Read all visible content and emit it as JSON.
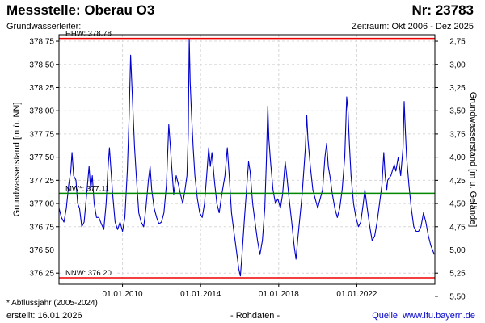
{
  "header": {
    "title": "Messstelle: Oberau O3",
    "nr": "Nr: 23783",
    "aquifer": "Grundwasserleiter:",
    "period": "Zeitraum: Okt 2006 - Dez 2025"
  },
  "footer": {
    "note": "* Abflussjahr (2005-2024)",
    "created": "erstellt:  16.01.2026",
    "raw": "- Rohdaten -",
    "source": "Quelle:  www.lfu.bayern.de"
  },
  "chart_data": {
    "type": "line",
    "ylabel_left": "Grundwasserstand [m ü. NN]",
    "ylabel_right": "Grundwasserstand [m u. Gelände]",
    "ylim": [
      376.13,
      378.82
    ],
    "yticks_left": [
      {
        "value": 378.75,
        "label": "378,75"
      },
      {
        "value": 378.5,
        "label": "378,50"
      },
      {
        "value": 378.25,
        "label": "378,25"
      },
      {
        "value": 378.0,
        "label": "378,00"
      },
      {
        "value": 377.75,
        "label": "377,75"
      },
      {
        "value": 377.5,
        "label": "377,50"
      },
      {
        "value": 377.25,
        "label": "377,25"
      },
      {
        "value": 377.0,
        "label": "377,00"
      },
      {
        "value": 376.75,
        "label": "376,75"
      },
      {
        "value": 376.5,
        "label": "376,50"
      },
      {
        "value": 376.25,
        "label": "376,25"
      }
    ],
    "yticks_right": [
      {
        "value": 2.75,
        "label": "2,75"
      },
      {
        "value": 3.0,
        "label": "3,00"
      },
      {
        "value": 3.25,
        "label": "3,25"
      },
      {
        "value": 3.5,
        "label": "3,50"
      },
      {
        "value": 3.75,
        "label": "3,75"
      },
      {
        "value": 4.0,
        "label": "4,00"
      },
      {
        "value": 4.25,
        "label": "4,25"
      },
      {
        "value": 4.5,
        "label": "4,50"
      },
      {
        "value": 4.75,
        "label": "4,75"
      },
      {
        "value": 5.0,
        "label": "5,00"
      },
      {
        "value": 5.25,
        "label": "5,25"
      },
      {
        "value": 5.5,
        "label": "5,50"
      }
    ],
    "right_axis_ground_level": 381.5,
    "xlim": [
      "2006-10-01",
      "2025-12-31"
    ],
    "xticks": [
      {
        "date": "2010-01-01",
        "label": "01.01.2010"
      },
      {
        "date": "2014-01-01",
        "label": "01.01.2014"
      },
      {
        "date": "2018-01-01",
        "label": "01.01.2018"
      },
      {
        "date": "2022-01-01",
        "label": "01.01.2022"
      }
    ],
    "grid": true,
    "reference_lines": [
      {
        "name": "HHW",
        "label": "HHW: 378.78",
        "value": 378.78,
        "color": "#ee0000"
      },
      {
        "name": "MW",
        "label": "MW*: 377.11",
        "value": 377.11,
        "color": "#008800"
      },
      {
        "name": "NNW",
        "label": "NNW: 376.20",
        "value": 376.2,
        "color": "#ee0000"
      }
    ],
    "series": [
      {
        "color": "#0000cc",
        "points": [
          [
            "2006-10-01",
            376.95
          ],
          [
            "2006-11-15",
            376.85
          ],
          [
            "2007-01-01",
            376.8
          ],
          [
            "2007-02-15",
            376.95
          ],
          [
            "2007-04-01",
            377.2
          ],
          [
            "2007-05-10",
            377.35
          ],
          [
            "2007-06-01",
            377.55
          ],
          [
            "2007-07-01",
            377.3
          ],
          [
            "2007-08-15",
            377.25
          ],
          [
            "2007-09-15",
            377.0
          ],
          [
            "2007-10-20",
            376.95
          ],
          [
            "2007-12-01",
            376.75
          ],
          [
            "2008-01-15",
            376.8
          ],
          [
            "2008-03-01",
            377.1
          ],
          [
            "2008-04-15",
            377.4
          ],
          [
            "2008-05-15",
            377.15
          ],
          [
            "2008-06-15",
            377.3
          ],
          [
            "2008-07-20",
            377.0
          ],
          [
            "2008-09-01",
            376.85
          ],
          [
            "2008-10-15",
            376.85
          ],
          [
            "2008-12-01",
            376.78
          ],
          [
            "2009-01-15",
            376.72
          ],
          [
            "2009-03-01",
            377.0
          ],
          [
            "2009-04-01",
            377.35
          ],
          [
            "2009-05-01",
            377.6
          ],
          [
            "2009-06-01",
            377.35
          ],
          [
            "2009-07-01",
            377.1
          ],
          [
            "2009-08-15",
            376.8
          ],
          [
            "2009-10-01",
            376.72
          ],
          [
            "2009-11-15",
            376.8
          ],
          [
            "2010-01-01",
            376.7
          ],
          [
            "2010-02-15",
            376.85
          ],
          [
            "2010-04-01",
            377.35
          ],
          [
            "2010-05-05",
            377.95
          ],
          [
            "2010-06-01",
            378.6
          ],
          [
            "2010-06-20",
            378.35
          ],
          [
            "2010-07-15",
            378.0
          ],
          [
            "2010-08-15",
            377.6
          ],
          [
            "2010-09-15",
            377.3
          ],
          [
            "2010-11-01",
            376.9
          ],
          [
            "2010-12-15",
            376.8
          ],
          [
            "2011-02-01",
            376.75
          ],
          [
            "2011-03-15",
            376.95
          ],
          [
            "2011-05-01",
            377.25
          ],
          [
            "2011-06-01",
            377.4
          ],
          [
            "2011-07-01",
            377.15
          ],
          [
            "2011-08-15",
            376.95
          ],
          [
            "2011-10-01",
            376.85
          ],
          [
            "2011-11-15",
            376.78
          ],
          [
            "2012-01-01",
            376.8
          ],
          [
            "2012-02-15",
            376.9
          ],
          [
            "2012-04-01",
            377.2
          ],
          [
            "2012-05-15",
            377.85
          ],
          [
            "2012-06-10",
            377.65
          ],
          [
            "2012-07-15",
            377.35
          ],
          [
            "2012-08-15",
            377.1
          ],
          [
            "2012-10-01",
            377.3
          ],
          [
            "2012-11-15",
            377.2
          ],
          [
            "2012-12-20",
            377.1
          ],
          [
            "2013-02-01",
            377.0
          ],
          [
            "2013-03-15",
            377.15
          ],
          [
            "2013-04-20",
            377.3
          ],
          [
            "2013-05-15",
            377.75
          ],
          [
            "2013-06-02",
            378.78
          ],
          [
            "2013-06-20",
            378.3
          ],
          [
            "2013-07-15",
            377.95
          ],
          [
            "2013-08-15",
            377.6
          ],
          [
            "2013-09-15",
            377.3
          ],
          [
            "2013-11-01",
            377.05
          ],
          [
            "2013-12-15",
            376.9
          ],
          [
            "2014-02-01",
            376.85
          ],
          [
            "2014-03-15",
            377.0
          ],
          [
            "2014-05-01",
            377.35
          ],
          [
            "2014-06-01",
            377.6
          ],
          [
            "2014-07-01",
            377.4
          ],
          [
            "2014-08-01",
            377.55
          ],
          [
            "2014-09-15",
            377.25
          ],
          [
            "2014-11-01",
            377.0
          ],
          [
            "2014-12-15",
            376.9
          ],
          [
            "2015-02-01",
            377.1
          ],
          [
            "2015-04-01",
            377.3
          ],
          [
            "2015-05-15",
            377.6
          ],
          [
            "2015-06-15",
            377.35
          ],
          [
            "2015-08-01",
            376.9
          ],
          [
            "2015-09-15",
            376.7
          ],
          [
            "2015-11-01",
            376.5
          ],
          [
            "2015-12-15",
            376.3
          ],
          [
            "2016-01-15",
            376.22
          ],
          [
            "2016-02-15",
            376.45
          ],
          [
            "2016-04-01",
            376.85
          ],
          [
            "2016-05-15",
            377.2
          ],
          [
            "2016-06-15",
            377.45
          ],
          [
            "2016-07-15",
            377.35
          ],
          [
            "2016-09-01",
            377.0
          ],
          [
            "2016-10-15",
            376.8
          ],
          [
            "2016-12-01",
            376.6
          ],
          [
            "2017-01-15",
            376.45
          ],
          [
            "2017-03-01",
            376.6
          ],
          [
            "2017-04-15",
            376.95
          ],
          [
            "2017-05-15",
            377.45
          ],
          [
            "2017-06-10",
            378.05
          ],
          [
            "2017-07-01",
            377.7
          ],
          [
            "2017-08-01",
            377.45
          ],
          [
            "2017-09-15",
            377.15
          ],
          [
            "2017-11-01",
            377.0
          ],
          [
            "2017-12-15",
            377.05
          ],
          [
            "2018-02-01",
            376.95
          ],
          [
            "2018-03-15",
            377.1
          ],
          [
            "2018-05-01",
            377.45
          ],
          [
            "2018-06-01",
            377.3
          ],
          [
            "2018-07-15",
            377.05
          ],
          [
            "2018-09-01",
            376.8
          ],
          [
            "2018-10-15",
            376.55
          ],
          [
            "2018-11-20",
            376.4
          ],
          [
            "2018-12-20",
            376.6
          ],
          [
            "2019-02-01",
            376.85
          ],
          [
            "2019-03-15",
            377.1
          ],
          [
            "2019-04-15",
            377.35
          ],
          [
            "2019-05-15",
            377.6
          ],
          [
            "2019-06-10",
            377.95
          ],
          [
            "2019-07-01",
            377.7
          ],
          [
            "2019-08-15",
            377.4
          ],
          [
            "2019-10-01",
            377.15
          ],
          [
            "2019-11-15",
            377.05
          ],
          [
            "2020-01-01",
            376.95
          ],
          [
            "2020-02-15",
            377.05
          ],
          [
            "2020-04-01",
            377.15
          ],
          [
            "2020-05-15",
            377.5
          ],
          [
            "2020-06-15",
            377.65
          ],
          [
            "2020-07-15",
            377.4
          ],
          [
            "2020-08-15",
            377.3
          ],
          [
            "2020-10-01",
            377.1
          ],
          [
            "2020-11-15",
            376.95
          ],
          [
            "2021-01-01",
            376.85
          ],
          [
            "2021-02-15",
            376.95
          ],
          [
            "2021-04-01",
            377.15
          ],
          [
            "2021-05-20",
            377.5
          ],
          [
            "2021-06-25",
            378.15
          ],
          [
            "2021-07-20",
            378.0
          ],
          [
            "2021-08-15",
            377.65
          ],
          [
            "2021-09-15",
            377.3
          ],
          [
            "2021-11-01",
            377.0
          ],
          [
            "2021-12-15",
            376.85
          ],
          [
            "2022-02-01",
            376.75
          ],
          [
            "2022-03-15",
            376.8
          ],
          [
            "2022-05-01",
            377.0
          ],
          [
            "2022-06-01",
            377.15
          ],
          [
            "2022-07-15",
            376.95
          ],
          [
            "2022-09-01",
            376.75
          ],
          [
            "2022-10-15",
            376.6
          ],
          [
            "2022-12-01",
            376.65
          ],
          [
            "2023-01-15",
            376.8
          ],
          [
            "2023-03-01",
            377.0
          ],
          [
            "2023-04-15",
            377.2
          ],
          [
            "2023-05-20",
            377.55
          ],
          [
            "2023-06-15",
            377.3
          ],
          [
            "2023-07-15",
            377.15
          ],
          [
            "2023-08-01",
            377.25
          ],
          [
            "2023-10-01",
            377.3
          ],
          [
            "2023-12-01",
            377.42
          ],
          [
            "2024-01-01",
            377.35
          ],
          [
            "2024-02-15",
            377.5
          ],
          [
            "2024-04-01",
            377.3
          ],
          [
            "2024-05-15",
            377.6
          ],
          [
            "2024-06-05",
            378.1
          ],
          [
            "2024-06-25",
            377.8
          ],
          [
            "2024-07-20",
            377.5
          ],
          [
            "2024-09-01",
            377.2
          ],
          [
            "2024-10-15",
            376.95
          ],
          [
            "2024-12-01",
            376.75
          ],
          [
            "2025-01-15",
            376.7
          ],
          [
            "2025-03-01",
            376.7
          ],
          [
            "2025-04-15",
            376.75
          ],
          [
            "2025-06-01",
            376.9
          ],
          [
            "2025-07-15",
            376.8
          ],
          [
            "2025-09-01",
            376.65
          ],
          [
            "2025-10-15",
            376.55
          ],
          [
            "2025-12-20",
            376.45
          ]
        ]
      }
    ]
  }
}
